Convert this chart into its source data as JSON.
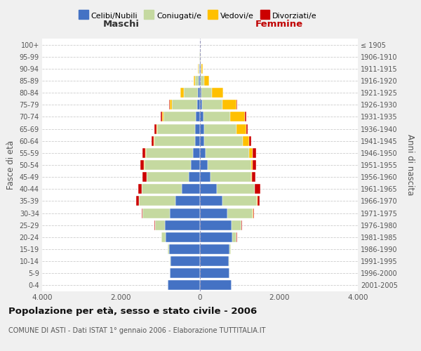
{
  "age_groups": [
    "0-4",
    "5-9",
    "10-14",
    "15-19",
    "20-24",
    "25-29",
    "30-34",
    "35-39",
    "40-44",
    "45-49",
    "50-54",
    "55-59",
    "60-64",
    "65-69",
    "70-74",
    "75-79",
    "80-84",
    "85-89",
    "90-94",
    "95-99",
    "100+"
  ],
  "birth_years": [
    "2001-2005",
    "1996-2000",
    "1991-1995",
    "1986-1990",
    "1981-1985",
    "1976-1980",
    "1971-1975",
    "1966-1970",
    "1961-1965",
    "1956-1960",
    "1951-1955",
    "1946-1950",
    "1941-1945",
    "1936-1940",
    "1931-1935",
    "1926-1930",
    "1921-1925",
    "1916-1920",
    "1911-1915",
    "1906-1910",
    "≤ 1905"
  ],
  "males": {
    "celibi": [
      820,
      760,
      750,
      780,
      870,
      890,
      770,
      620,
      460,
      280,
      230,
      170,
      130,
      120,
      110,
      80,
      50,
      30,
      10,
      4,
      2
    ],
    "coniugati": [
      5,
      10,
      20,
      40,
      100,
      250,
      680,
      930,
      1020,
      1070,
      1180,
      1200,
      1030,
      970,
      820,
      640,
      360,
      100,
      30,
      8,
      3
    ],
    "vedovi": [
      0,
      0,
      0,
      0,
      0,
      1,
      2,
      3,
      3,
      4,
      5,
      8,
      15,
      20,
      35,
      50,
      80,
      30,
      5,
      0,
      0
    ],
    "divorziati": [
      0,
      0,
      0,
      2,
      5,
      10,
      30,
      70,
      80,
      100,
      90,
      80,
      50,
      40,
      35,
      20,
      5,
      0,
      0,
      0,
      0
    ]
  },
  "females": {
    "nubili": [
      800,
      740,
      720,
      740,
      820,
      800,
      700,
      570,
      420,
      270,
      200,
      150,
      110,
      100,
      80,
      60,
      40,
      25,
      10,
      5,
      2
    ],
    "coniugate": [
      5,
      12,
      20,
      45,
      110,
      250,
      640,
      870,
      960,
      1020,
      1100,
      1100,
      980,
      820,
      680,
      500,
      270,
      80,
      25,
      8,
      2
    ],
    "vedove": [
      0,
      0,
      0,
      0,
      0,
      2,
      5,
      10,
      15,
      20,
      40,
      80,
      150,
      250,
      380,
      360,
      270,
      130,
      30,
      2,
      0
    ],
    "divorziate": [
      0,
      0,
      0,
      2,
      5,
      10,
      30,
      60,
      130,
      100,
      90,
      100,
      50,
      35,
      30,
      15,
      5,
      0,
      0,
      0,
      0
    ]
  },
  "colors": {
    "celibi": "#4472c4",
    "coniugati": "#c5d9a0",
    "vedovi": "#ffc000",
    "divorziati": "#cc0000"
  },
  "title": "Popolazione per età, sesso e stato civile - 2006",
  "subtitle": "COMUNE DI ASTI - Dati ISTAT 1° gennaio 2006 - Elaborazione TUTTITALIA.IT",
  "xlabel_left": "Maschi",
  "xlabel_right": "Femmine",
  "ylabel_left": "Fasce di età",
  "ylabel_right": "Anni di nascita",
  "xlim": 4000,
  "bg_color": "#f0f0f0",
  "plot_bg": "#ffffff",
  "legend_labels": [
    "Celibi/Nubili",
    "Coniugati/e",
    "Vedovi/e",
    "Divorziati/e"
  ]
}
